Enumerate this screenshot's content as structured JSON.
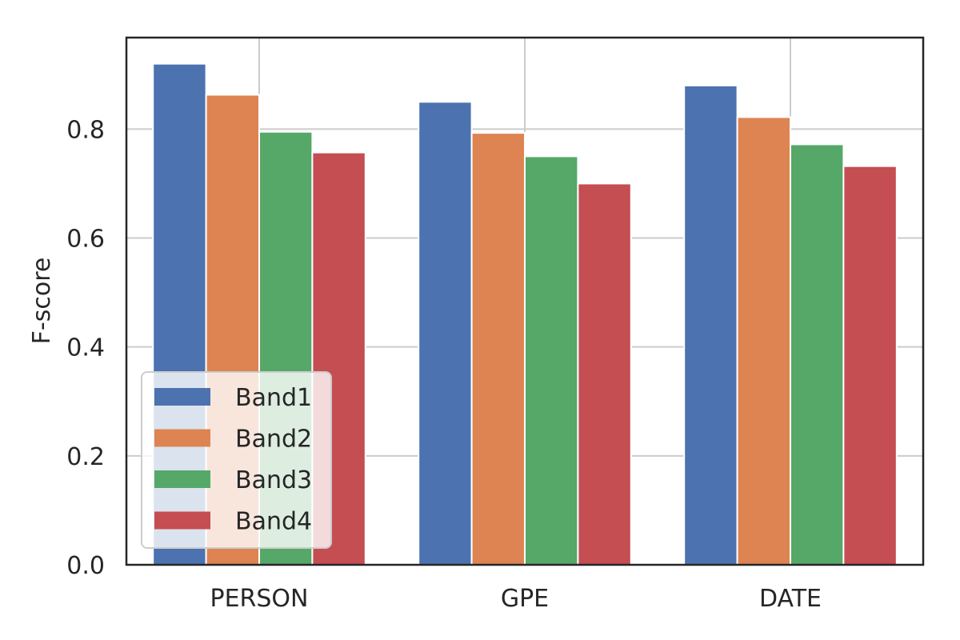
{
  "chart_data": {
    "type": "bar",
    "title": "",
    "xlabel": "",
    "ylabel": "F-score",
    "categories": [
      "PERSON",
      "GPE",
      "DATE"
    ],
    "series": [
      {
        "name": "Band1",
        "color": "#4c72b0",
        "values": [
          0.92,
          0.85,
          0.88
        ]
      },
      {
        "name": "Band2",
        "color": "#dd8452",
        "values": [
          0.863,
          0.793,
          0.822
        ]
      },
      {
        "name": "Band3",
        "color": "#55a868",
        "values": [
          0.795,
          0.75,
          0.772
        ]
      },
      {
        "name": "Band4",
        "color": "#c44e52",
        "values": [
          0.757,
          0.7,
          0.732
        ]
      }
    ],
    "ylim": [
      0,
      0.968
    ],
    "yticks": [
      0.0,
      0.2,
      0.4,
      0.6,
      0.8
    ],
    "ytick_labels": [
      "0.0",
      "0.2",
      "0.4",
      "0.6",
      "0.8"
    ],
    "grid": true,
    "legend_position": "lower-left"
  }
}
